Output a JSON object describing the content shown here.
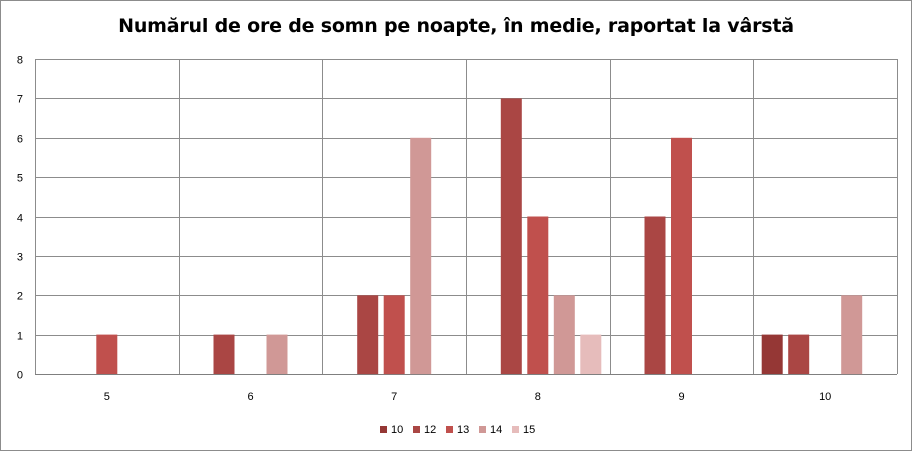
{
  "chart_data": {
    "type": "bar",
    "title": "Numărul de ore de somn pe noapte,  în medie, raportat la vârstă",
    "xlabel": "",
    "ylabel": "",
    "categories": [
      "5",
      "6",
      "7",
      "8",
      "9",
      "10"
    ],
    "ylim": [
      0,
      8
    ],
    "yticks": [
      0,
      1,
      2,
      3,
      4,
      5,
      6,
      7,
      8
    ],
    "grid": true,
    "legend_position": "bottom",
    "series": [
      {
        "name": "10",
        "color": "#953735",
        "values": [
          0,
          0,
          0,
          0,
          0,
          1
        ]
      },
      {
        "name": "12",
        "color": "#aa4644",
        "values": [
          0,
          1,
          2,
          7,
          4,
          1
        ]
      },
      {
        "name": "13",
        "color": "#c0504d",
        "values": [
          1,
          0,
          2,
          4,
          6,
          0
        ]
      },
      {
        "name": "14",
        "color": "#d09896",
        "values": [
          0,
          1,
          6,
          2,
          0,
          2
        ]
      },
      {
        "name": "15",
        "color": "#e6bcbb",
        "values": [
          0,
          0,
          0,
          1,
          0,
          0
        ]
      }
    ]
  }
}
